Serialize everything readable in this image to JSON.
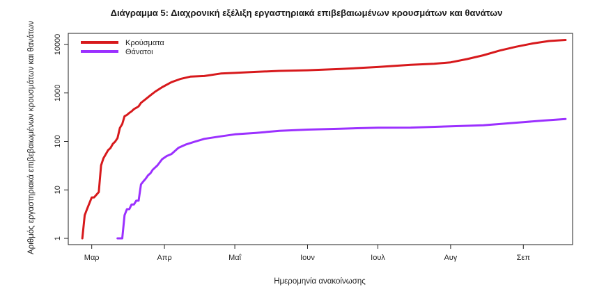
{
  "chart_data": {
    "type": "line",
    "title": "Διάγραμμα 5: Διαχρονική εξέλιξη εργαστηριακά επιβεβαιωμένων κρουσμάτων και θανάτων",
    "xlabel": "Ημερομηνία ανακοίνωσης",
    "ylabel": "Αριθμός εργαστηριακά επιβεβαιωμένων κρουσμάτων και θανάτων",
    "y_scale": "log",
    "ylim": [
      1,
      10000
    ],
    "y_ticks": [
      1,
      10,
      100,
      1000,
      10000
    ],
    "y_tick_labels": [
      "1",
      "10",
      "100",
      "1000",
      "10000"
    ],
    "xlim": [
      "2020-02-20",
      "2020-09-22"
    ],
    "x_ticks": [
      "2020-03-01",
      "2020-04-01",
      "2020-05-01",
      "2020-06-01",
      "2020-07-01",
      "2020-08-01",
      "2020-09-01"
    ],
    "x_tick_labels": [
      "Μαρ",
      "Απρ",
      "Μαΐ",
      "Ιουν",
      "Ιουλ",
      "Αυγ",
      "Σεπ"
    ],
    "grid": false,
    "legend": "top-left",
    "series": [
      {
        "name": "Κρούσματα",
        "color": "#d7191c",
        "x": [
          "2020-02-26",
          "2020-02-27",
          "2020-02-28",
          "2020-03-01",
          "2020-03-02",
          "2020-03-04",
          "2020-03-05",
          "2020-03-06",
          "2020-03-08",
          "2020-03-09",
          "2020-03-10",
          "2020-03-11",
          "2020-03-12",
          "2020-03-13",
          "2020-03-14",
          "2020-03-15",
          "2020-03-16",
          "2020-03-17",
          "2020-03-18",
          "2020-03-19",
          "2020-03-20",
          "2020-03-21",
          "2020-03-22",
          "2020-03-24",
          "2020-03-26",
          "2020-03-28",
          "2020-03-31",
          "2020-04-04",
          "2020-04-08",
          "2020-04-12",
          "2020-04-18",
          "2020-04-25",
          "2020-05-01",
          "2020-05-10",
          "2020-05-20",
          "2020-06-01",
          "2020-06-15",
          "2020-07-01",
          "2020-07-15",
          "2020-07-25",
          "2020-08-01",
          "2020-08-08",
          "2020-08-15",
          "2020-08-22",
          "2020-08-29",
          "2020-09-05",
          "2020-09-12",
          "2020-09-19"
        ],
        "values": [
          1,
          3,
          4,
          7,
          7,
          9,
          32,
          45,
          66,
          73,
          89,
          99,
          117,
          190,
          228,
          331,
          352,
          387,
          418,
          464,
          495,
          530,
          624,
          743,
          892,
          1061,
          1314,
          1673,
          1955,
          2170,
          2235,
          2517,
          2591,
          2726,
          2850,
          2937,
          3121,
          3432,
          3800,
          4000,
          4279,
          5000,
          6000,
          7500,
          9000,
          10500,
          11800,
          12400
        ]
      },
      {
        "name": "Θάνατοι",
        "color": "#9b30ff",
        "x": [
          "2020-03-12",
          "2020-03-14",
          "2020-03-15",
          "2020-03-16",
          "2020-03-17",
          "2020-03-18",
          "2020-03-19",
          "2020-03-20",
          "2020-03-21",
          "2020-03-22",
          "2020-03-23",
          "2020-03-24",
          "2020-03-25",
          "2020-03-26",
          "2020-03-27",
          "2020-03-29",
          "2020-03-31",
          "2020-04-02",
          "2020-04-04",
          "2020-04-07",
          "2020-04-10",
          "2020-04-14",
          "2020-04-18",
          "2020-04-24",
          "2020-05-01",
          "2020-05-10",
          "2020-05-20",
          "2020-06-01",
          "2020-06-15",
          "2020-07-01",
          "2020-07-15",
          "2020-08-01",
          "2020-08-15",
          "2020-09-01",
          "2020-09-10",
          "2020-09-19"
        ],
        "values": [
          1,
          1,
          3,
          4,
          4,
          5,
          5,
          6,
          6,
          13,
          15,
          17,
          20,
          22,
          26,
          32,
          43,
          50,
          55,
          74,
          86,
          99,
          113,
          125,
          140,
          150,
          165,
          175,
          183,
          192,
          193,
          205,
          215,
          250,
          270,
          290
        ]
      }
    ]
  }
}
